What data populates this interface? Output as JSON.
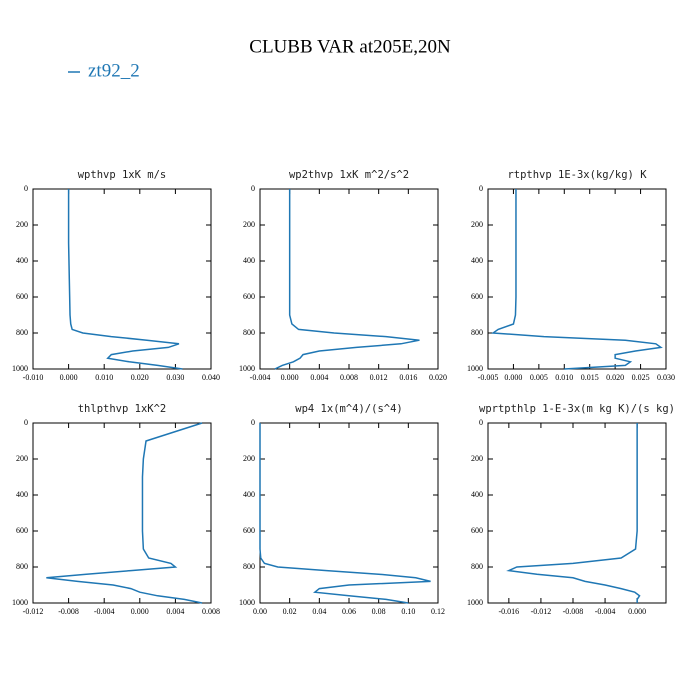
{
  "title": "CLUBB VAR at205E,20N",
  "legend": {
    "label": "zt92_2",
    "color": "#1f77b4"
  },
  "chart_data": [
    {
      "type": "line",
      "title": "wpthvp  1xK m/s",
      "y": [
        0,
        100,
        200,
        300,
        400,
        500,
        600,
        700,
        750,
        780,
        800,
        820,
        840,
        860,
        880,
        900,
        920,
        940,
        960,
        980,
        1000
      ],
      "values": [
        0.0,
        0.0,
        0.0,
        0.0,
        0.0001,
        0.0002,
        0.0003,
        0.0004,
        0.0006,
        0.001,
        0.004,
        0.012,
        0.022,
        0.031,
        0.028,
        0.018,
        0.012,
        0.011,
        0.017,
        0.025,
        0.032
      ],
      "xlim": [
        -0.01,
        0.04
      ],
      "xticks": [
        {
          "value": -0.01,
          "label": "-0.010"
        },
        {
          "value": 0,
          "label": "0.000"
        },
        {
          "value": 0.01,
          "label": "0.010"
        },
        {
          "value": 0.02,
          "label": "0.020"
        },
        {
          "value": 0.03,
          "label": "0.030"
        },
        {
          "value": 0.04,
          "label": "0.040"
        }
      ],
      "ylim": [
        1000,
        0
      ],
      "yticks": [
        0,
        200,
        400,
        600,
        800,
        1000
      ]
    },
    {
      "type": "line",
      "title": "wp2thvp  1xK m^2/s^2",
      "y": [
        0,
        100,
        200,
        300,
        400,
        500,
        600,
        700,
        750,
        780,
        800,
        820,
        840,
        860,
        880,
        900,
        920,
        940,
        960,
        980,
        1000
      ],
      "values": [
        0,
        0,
        0,
        0,
        0,
        0,
        0,
        0,
        0.0003,
        0.0012,
        0.006,
        0.013,
        0.0175,
        0.015,
        0.009,
        0.004,
        0.0018,
        0.0014,
        0.0005,
        -0.001,
        -0.002
      ],
      "xlim": [
        -0.004,
        0.02
      ],
      "xticks": [
        {
          "value": -0.004,
          "label": "-0.004"
        },
        {
          "value": 0,
          "label": "0.000"
        },
        {
          "value": 0.004,
          "label": "0.004"
        },
        {
          "value": 0.008,
          "label": "0.008"
        },
        {
          "value": 0.012,
          "label": "0.012"
        },
        {
          "value": 0.016,
          "label": "0.016"
        },
        {
          "value": 0.02,
          "label": "0.020"
        }
      ],
      "ylim": [
        1000,
        0
      ],
      "yticks": [
        0,
        200,
        400,
        600,
        800,
        1000
      ]
    },
    {
      "type": "line",
      "title": "rtpthvp  1E-3x(kg/kg) K",
      "y": [
        0,
        100,
        200,
        300,
        400,
        500,
        600,
        700,
        750,
        780,
        800,
        820,
        840,
        860,
        880,
        900,
        920,
        940,
        960,
        980,
        1000
      ],
      "values": [
        0.0005,
        0.0005,
        0.0005,
        0.0005,
        0.0005,
        0.0005,
        0.0005,
        0.0004,
        0.0,
        -0.003,
        -0.004,
        0.006,
        0.022,
        0.028,
        0.029,
        0.024,
        0.02,
        0.02,
        0.023,
        0.022,
        0.01
      ],
      "xlim": [
        -0.005,
        0.03
      ],
      "xticks": [
        {
          "value": -0.005,
          "label": "-0.005"
        },
        {
          "value": 0,
          "label": "0.000"
        },
        {
          "value": 0.005,
          "label": "0.005"
        },
        {
          "value": 0.01,
          "label": "0.010"
        },
        {
          "value": 0.015,
          "label": "0.015"
        },
        {
          "value": 0.02,
          "label": "0.020"
        },
        {
          "value": 0.025,
          "label": "0.025"
        },
        {
          "value": 0.03,
          "label": "0.030"
        }
      ],
      "ylim": [
        1000,
        0
      ],
      "yticks": [
        0,
        200,
        400,
        600,
        800,
        1000
      ]
    },
    {
      "type": "line",
      "title": "thlpthvp  1xK^2",
      "y": [
        0,
        100,
        200,
        300,
        400,
        500,
        600,
        700,
        750,
        780,
        800,
        820,
        840,
        860,
        880,
        900,
        920,
        940,
        960,
        980,
        1000
      ],
      "values": [
        0.007,
        0.0007,
        0.0004,
        0.0003,
        0.0003,
        0.0003,
        0.0003,
        0.0004,
        0.001,
        0.0035,
        0.004,
        -0.001,
        -0.006,
        -0.0105,
        -0.007,
        -0.003,
        -0.001,
        0.0,
        0.002,
        0.005,
        0.007
      ],
      "xlim": [
        -0.012,
        0.008
      ],
      "xticks": [
        {
          "value": -0.012,
          "label": "-0.012"
        },
        {
          "value": -0.008,
          "label": "-0.008"
        },
        {
          "value": -0.004,
          "label": "-0.004"
        },
        {
          "value": 0,
          "label": "0.000"
        },
        {
          "value": 0.004,
          "label": "0.004"
        },
        {
          "value": 0.008,
          "label": "0.008"
        }
      ],
      "ylim": [
        1000,
        0
      ],
      "yticks": [
        0,
        200,
        400,
        600,
        800,
        1000
      ]
    },
    {
      "type": "line",
      "title": "wp4  1x(m^4)/(s^4)",
      "y": [
        0,
        100,
        200,
        300,
        400,
        500,
        600,
        700,
        750,
        780,
        800,
        820,
        840,
        860,
        880,
        900,
        920,
        940,
        960,
        980,
        1000
      ],
      "values": [
        0,
        0,
        0,
        0,
        0,
        0,
        0,
        0,
        0.0005,
        0.003,
        0.012,
        0.045,
        0.08,
        0.105,
        0.115,
        0.06,
        0.04,
        0.037,
        0.06,
        0.085,
        0.1
      ],
      "xlim": [
        0,
        0.12
      ],
      "xticks": [
        {
          "value": 0,
          "label": "0.00"
        },
        {
          "value": 0.02,
          "label": "0.02"
        },
        {
          "value": 0.04,
          "label": "0.04"
        },
        {
          "value": 0.06,
          "label": "0.06"
        },
        {
          "value": 0.08,
          "label": "0.08"
        },
        {
          "value": 0.1,
          "label": "0.10"
        },
        {
          "value": 0.12,
          "label": "0.12"
        }
      ],
      "ylim": [
        1000,
        0
      ],
      "yticks": [
        0,
        200,
        400,
        600,
        800,
        1000
      ]
    },
    {
      "type": "line",
      "title": "wprtpthlp  1-E-3x(m kg K)/(s kg)",
      "y": [
        0,
        100,
        200,
        300,
        400,
        500,
        600,
        700,
        750,
        780,
        800,
        820,
        840,
        860,
        880,
        900,
        920,
        940,
        960,
        980,
        1000
      ],
      "values": [
        0,
        0,
        0,
        0,
        0,
        0,
        0,
        -0.0002,
        -0.002,
        -0.008,
        -0.015,
        -0.016,
        -0.0125,
        -0.008,
        -0.0065,
        -0.004,
        -0.002,
        -0.0003,
        0.0003,
        0.0,
        0.0
      ],
      "xlim": [
        -0.0186,
        0.0036
      ],
      "xticks": [
        {
          "value": -0.016,
          "label": "-0.016"
        },
        {
          "value": -0.012,
          "label": "-0.012"
        },
        {
          "value": -0.008,
          "label": "-0.008"
        },
        {
          "value": -0.004,
          "label": "-0.004"
        },
        {
          "value": 0,
          "label": "0.000"
        }
      ],
      "ylim": [
        1000,
        0
      ],
      "yticks": [
        0,
        200,
        400,
        600,
        800,
        1000
      ]
    }
  ]
}
